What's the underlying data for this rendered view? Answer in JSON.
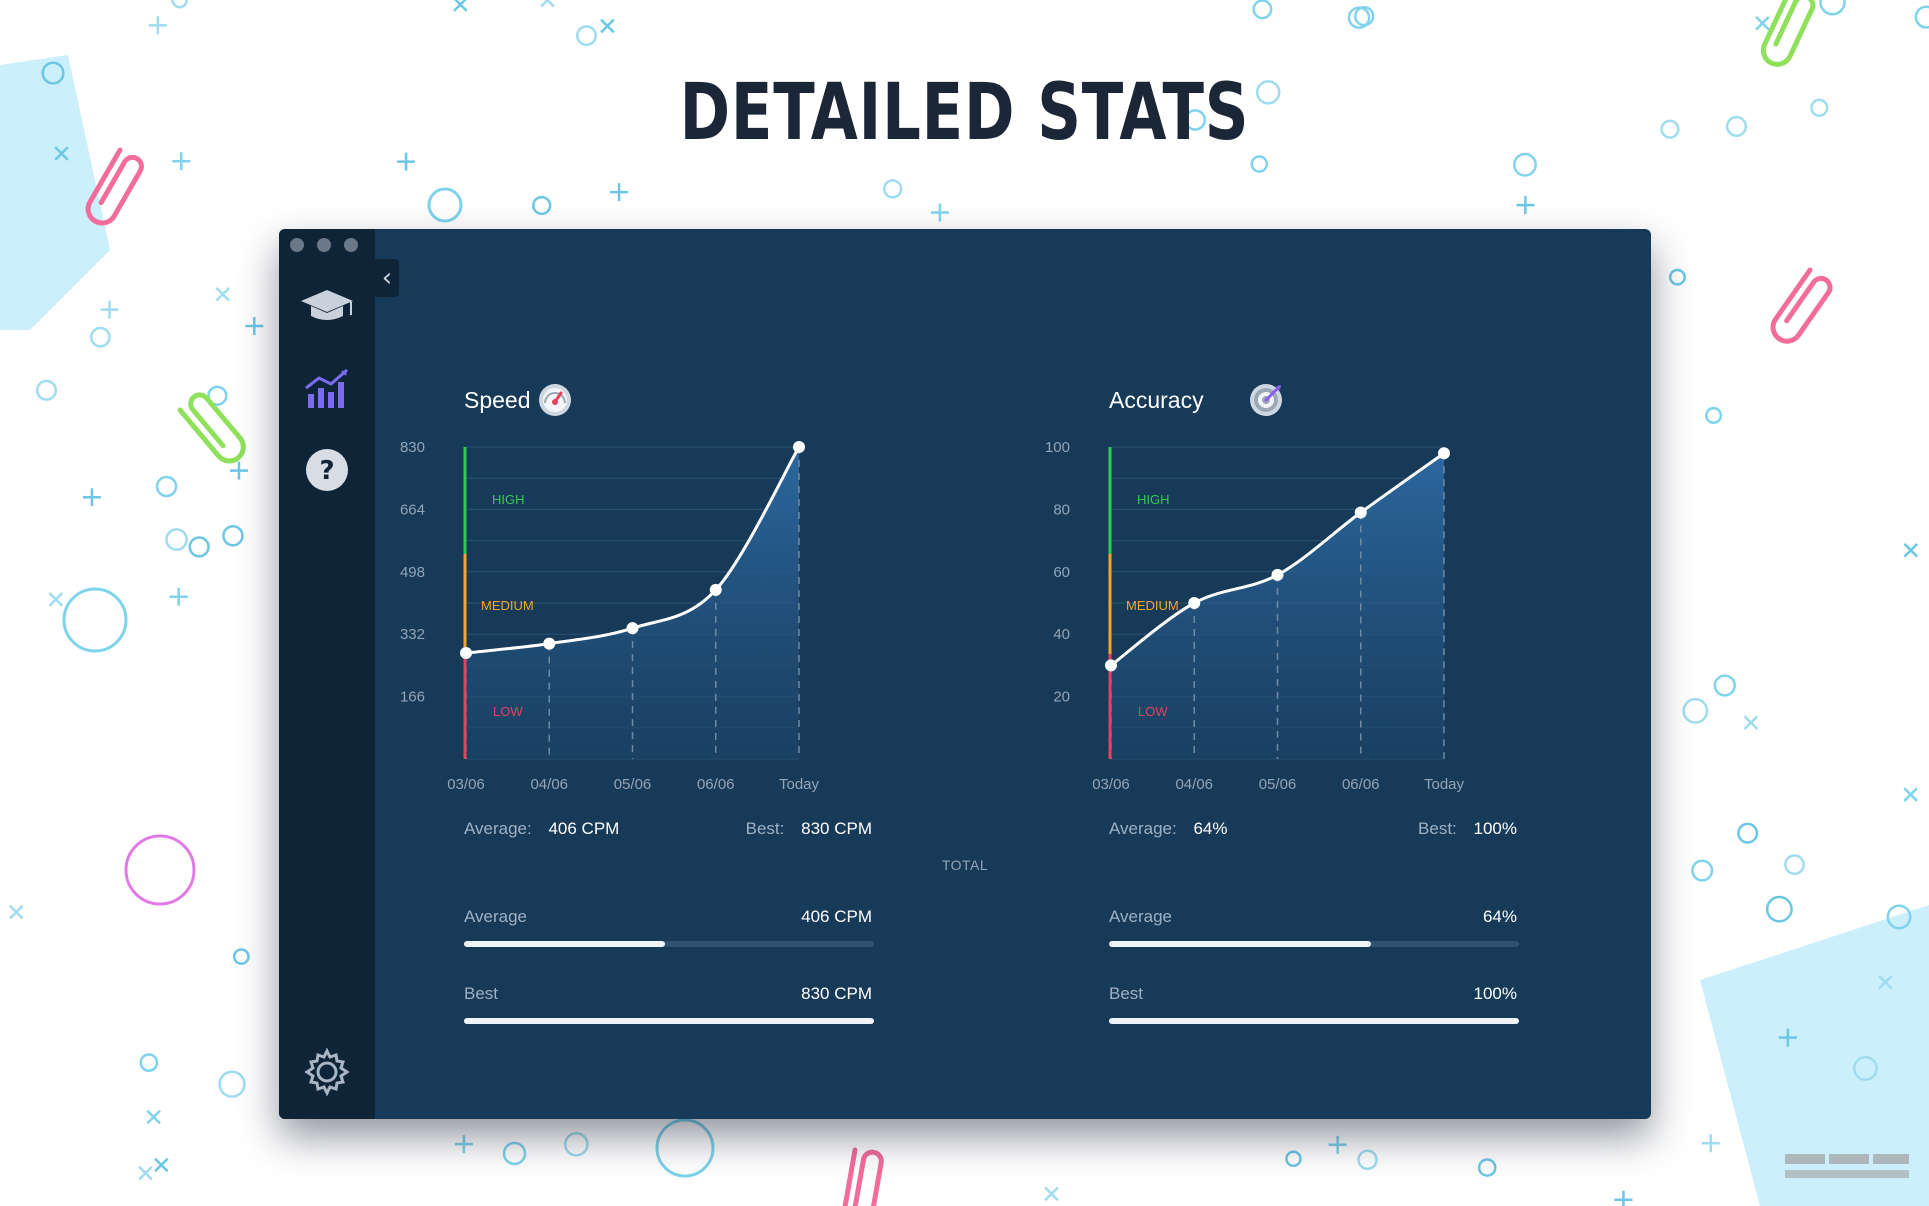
{
  "headline": "DETAILED STATS",
  "sidebar": {
    "items": [
      {
        "icon": "graduation-cap-icon"
      },
      {
        "icon": "stats-chart-icon",
        "active": true
      },
      {
        "icon": "help-icon",
        "label": "?"
      },
      {
        "icon": "gear-icon"
      }
    ],
    "collapse_glyph": "‹"
  },
  "total_label": "TOTAL",
  "panels": [
    {
      "title": "Speed",
      "icon": "speedometer-icon",
      "stats": {
        "avg_label": "Average:",
        "avg_value": "406 CPM",
        "best_label": "Best:",
        "best_value": "830 CPM"
      },
      "bars": [
        {
          "label": "Average",
          "value": "406 CPM",
          "fill": 0.49
        },
        {
          "label": "Best",
          "value": "830 CPM",
          "fill": 1.0
        }
      ]
    },
    {
      "title": "Accuracy",
      "icon": "target-icon",
      "stats": {
        "avg_label": "Average:",
        "avg_value": "64%",
        "best_label": "Best:",
        "best_value": "100%"
      },
      "bars": [
        {
          "label": "Average",
          "value": "64%",
          "fill": 0.64
        },
        {
          "label": "Best",
          "value": "100%",
          "fill": 1.0
        }
      ]
    }
  ],
  "chart_data": [
    {
      "type": "area",
      "x": [
        "03/06",
        "04/06",
        "05/06",
        "06/06",
        "Today"
      ],
      "values": [
        282,
        307,
        348,
        450,
        830
      ],
      "yticks": [
        "830",
        "664",
        "498",
        "332",
        "166"
      ],
      "ylim": [
        0,
        830
      ],
      "zones": [
        {
          "label": "HIGH",
          "color": "#2ecc4f"
        },
        {
          "label": "MEDIUM",
          "color": "#f5a623"
        },
        {
          "label": "LOW",
          "color": "#e8405d"
        }
      ],
      "grid": true
    },
    {
      "type": "area",
      "x": [
        "03/06",
        "04/06",
        "05/06",
        "06/06",
        "Today"
      ],
      "values": [
        30,
        50,
        59,
        79,
        98
      ],
      "yticks": [
        "100",
        "80",
        "60",
        "40",
        "20"
      ],
      "ylim": [
        0,
        100
      ],
      "zones": [
        {
          "label": "HIGH",
          "color": "#2ecc4f"
        },
        {
          "label": "MEDIUM",
          "color": "#f5a623"
        },
        {
          "label": "LOW",
          "color": "#e8405d"
        }
      ],
      "grid": true
    }
  ]
}
